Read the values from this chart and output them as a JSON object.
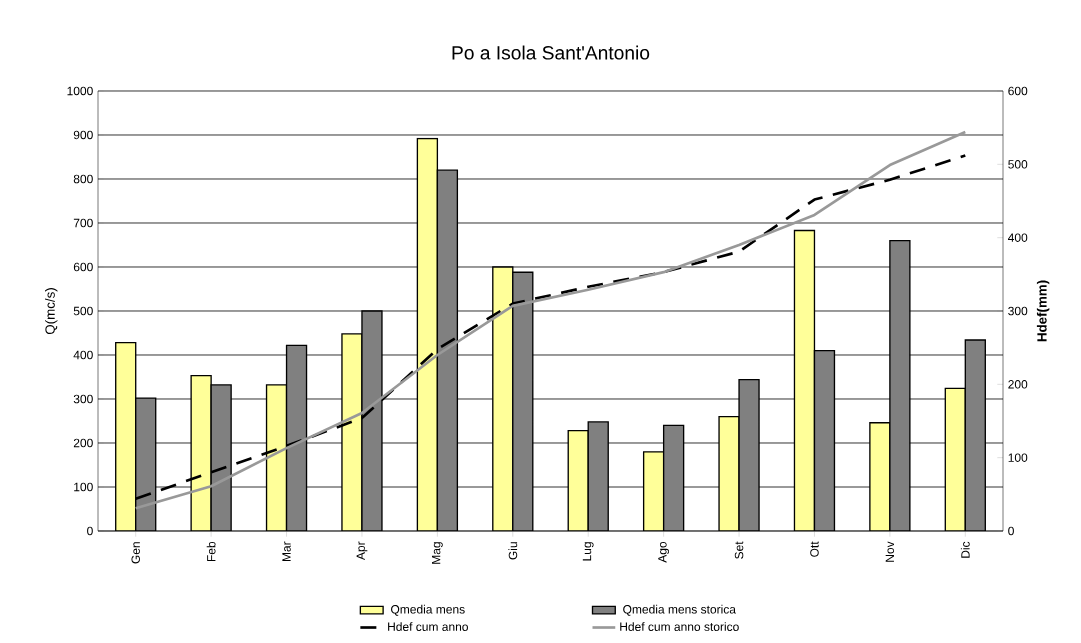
{
  "chart_data": {
    "type": "bar",
    "title": "Po a Isola Sant'Antonio",
    "ylabel": "Q(mc/s)",
    "y2label": "Hdef(mm)",
    "categories": [
      "Gen",
      "Feb",
      "Mar",
      "Apr",
      "Mag",
      "Giu",
      "Lug",
      "Ago",
      "Set",
      "Ott",
      "Nov",
      "Dic"
    ],
    "ylim": [
      0,
      1000
    ],
    "yticks": [
      0,
      100,
      200,
      300,
      400,
      500,
      600,
      700,
      800,
      900,
      1000
    ],
    "y2lim": [
      0,
      600
    ],
    "y2ticks": [
      0,
      100,
      200,
      300,
      400,
      500,
      600
    ],
    "grid": "y",
    "legend": "bottom",
    "series": [
      {
        "name": "Qmedia mens",
        "color": "#ffff99",
        "values": [
          428,
          353,
          332,
          448,
          892,
          600,
          228,
          180,
          260,
          683,
          246,
          324
        ]
      },
      {
        "name": "Qmedia mens storica",
        "color": "#808080",
        "values": [
          302,
          332,
          422,
          500,
          820,
          588,
          248,
          240,
          344,
          410,
          660,
          434
        ]
      },
      {
        "name": "Hdef cum anno",
        "type": "line",
        "axis": "y2",
        "color": "#000000",
        "line_style": "dashed",
        "values": [
          44,
          80,
          116,
          154,
          248,
          310,
          333,
          353,
          381,
          452,
          479,
          512
        ]
      },
      {
        "name": "Hdef cum anno storico",
        "type": "line",
        "axis": "y2",
        "color": "#999999",
        "line_style": "solid",
        "values": [
          31,
          61,
          113,
          161,
          240,
          307,
          329,
          353,
          390,
          431,
          499,
          544
        ]
      }
    ]
  }
}
